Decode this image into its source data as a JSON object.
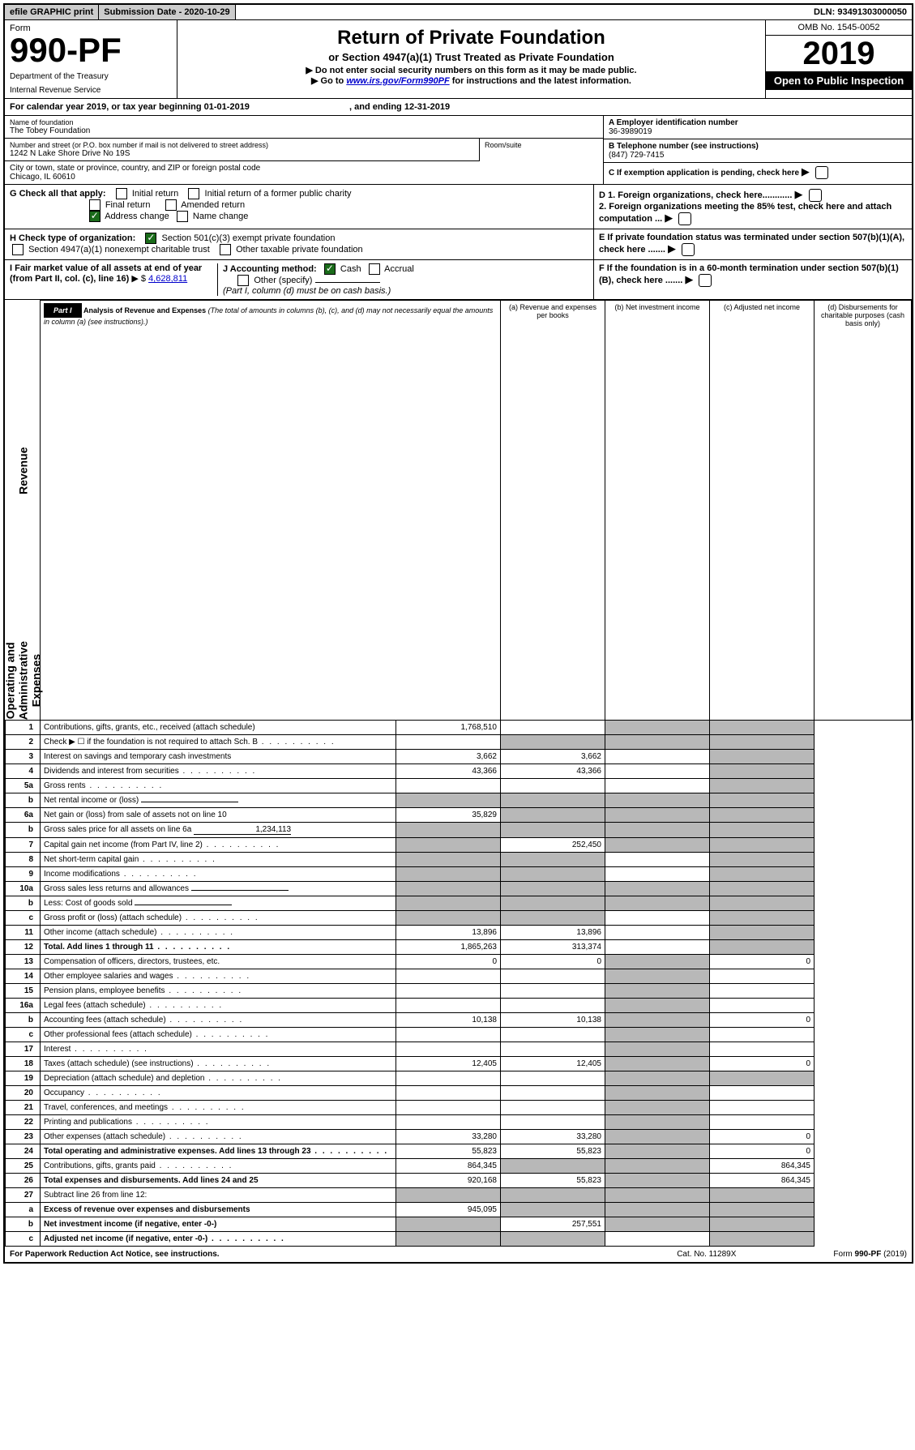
{
  "topbar": {
    "efile": "efile GRAPHIC print",
    "submission": "Submission Date - 2020-10-29",
    "dln": "DLN: 93491303000050"
  },
  "header": {
    "form_label": "Form",
    "form_no": "990-PF",
    "dept": "Department of the Treasury",
    "irs": "Internal Revenue Service",
    "title": "Return of Private Foundation",
    "subtitle": "or Section 4947(a)(1) Trust Treated as Private Foundation",
    "notice1": "▶ Do not enter social security numbers on this form as it may be made public.",
    "notice2_pre": "▶ Go to ",
    "notice2_link": "www.irs.gov/Form990PF",
    "notice2_post": " for instructions and the latest information.",
    "omb": "OMB No. 1545-0052",
    "year": "2019",
    "open": "Open to Public Inspection"
  },
  "calendar": {
    "text_pre": "For calendar year 2019, or tax year beginning ",
    "begin": "01-01-2019",
    "text_mid": " , and ending ",
    "end": "12-31-2019"
  },
  "info": {
    "name_label": "Name of foundation",
    "name": "The Tobey Foundation",
    "addr_label": "Number and street (or P.O. box number if mail is not delivered to street address)",
    "addr": "1242 N Lake Shore Drive No 19S",
    "room_label": "Room/suite",
    "city_label": "City or town, state or province, country, and ZIP or foreign postal code",
    "city": "Chicago, IL  60610",
    "ein_label": "A Employer identification number",
    "ein": "36-3989019",
    "phone_label": "B Telephone number (see instructions)",
    "phone": "(847) 729-7415",
    "c_label": "C If exemption application is pending, check here"
  },
  "checks": {
    "g_label": "G Check all that apply:",
    "initial": "Initial return",
    "initial_former": "Initial return of a former public charity",
    "final": "Final return",
    "amended": "Amended return",
    "address": "Address change",
    "name_change": "Name change",
    "h_label": "H Check type of organization:",
    "h_501c3": "Section 501(c)(3) exempt private foundation",
    "h_4947": "Section 4947(a)(1) nonexempt charitable trust",
    "h_other": "Other taxable private foundation",
    "i_label": "I Fair market value of all assets at end of year (from Part II, col. (c), line 16)",
    "i_value": "4,628,811",
    "j_label": "J Accounting method:",
    "j_cash": "Cash",
    "j_accrual": "Accrual",
    "j_other": "Other (specify)",
    "j_note": "(Part I, column (d) must be on cash basis.)",
    "d1": "D 1. Foreign organizations, check here............",
    "d2": "2. Foreign organizations meeting the 85% test, check here and attach computation ...",
    "e": "E If private foundation status was terminated under section 507(b)(1)(A), check here .......",
    "f": "F If the foundation is in a 60-month termination under section 507(b)(1)(B), check here ......."
  },
  "part1": {
    "label": "Part I",
    "title": "Analysis of Revenue and Expenses",
    "note": "(The total of amounts in columns (b), (c), and (d) may not necessarily equal the amounts in column (a) (see instructions).)",
    "col_a": "(a) Revenue and expenses per books",
    "col_b": "(b) Net investment income",
    "col_c": "(c) Adjusted net income",
    "col_d": "(d) Disbursements for charitable purposes (cash basis only)"
  },
  "sections": {
    "revenue": "Revenue",
    "expenses": "Operating and Administrative Expenses"
  },
  "rows": [
    {
      "n": "1",
      "desc": "Contributions, gifts, grants, etc., received (attach schedule)",
      "a": "1,768,510",
      "b": "",
      "c": "g",
      "d": "g"
    },
    {
      "n": "2",
      "desc": "Check ▶ ☐ if the foundation is not required to attach Sch. B",
      "a": "",
      "b": "g",
      "c": "g",
      "d": "g",
      "dots": true
    },
    {
      "n": "3",
      "desc": "Interest on savings and temporary cash investments",
      "a": "3,662",
      "b": "3,662",
      "c": "",
      "d": "g"
    },
    {
      "n": "4",
      "desc": "Dividends and interest from securities",
      "a": "43,366",
      "b": "43,366",
      "c": "",
      "d": "g",
      "dots": true
    },
    {
      "n": "5a",
      "desc": "Gross rents",
      "a": "",
      "b": "",
      "c": "",
      "d": "g",
      "dots": true
    },
    {
      "n": "b",
      "desc": "Net rental income or (loss)",
      "a": "g",
      "b": "g",
      "c": "g",
      "d": "g",
      "inline": true
    },
    {
      "n": "6a",
      "desc": "Net gain or (loss) from sale of assets not on line 10",
      "a": "35,829",
      "b": "g",
      "c": "g",
      "d": "g"
    },
    {
      "n": "b",
      "desc": "Gross sales price for all assets on line 6a",
      "a": "g",
      "b": "g",
      "c": "g",
      "d": "g",
      "inline": true,
      "inlineval": "1,234,113"
    },
    {
      "n": "7",
      "desc": "Capital gain net income (from Part IV, line 2)",
      "a": "g",
      "b": "252,450",
      "c": "g",
      "d": "g",
      "dots": true
    },
    {
      "n": "8",
      "desc": "Net short-term capital gain",
      "a": "g",
      "b": "g",
      "c": "",
      "d": "g",
      "dots": true
    },
    {
      "n": "9",
      "desc": "Income modifications",
      "a": "g",
      "b": "g",
      "c": "",
      "d": "g",
      "dots": true
    },
    {
      "n": "10a",
      "desc": "Gross sales less returns and allowances",
      "a": "g",
      "b": "g",
      "c": "g",
      "d": "g",
      "inline": true
    },
    {
      "n": "b",
      "desc": "Less: Cost of goods sold",
      "a": "g",
      "b": "g",
      "c": "g",
      "d": "g",
      "inline": true,
      "dots": true
    },
    {
      "n": "c",
      "desc": "Gross profit or (loss) (attach schedule)",
      "a": "g",
      "b": "g",
      "c": "",
      "d": "g",
      "dots": true
    },
    {
      "n": "11",
      "desc": "Other income (attach schedule)",
      "a": "13,896",
      "b": "13,896",
      "c": "",
      "d": "g",
      "dots": true
    },
    {
      "n": "12",
      "desc": "Total. Add lines 1 through 11",
      "a": "1,865,263",
      "b": "313,374",
      "c": "",
      "d": "g",
      "bold": true,
      "dots": true
    },
    {
      "n": "13",
      "desc": "Compensation of officers, directors, trustees, etc.",
      "a": "0",
      "b": "0",
      "c": "g",
      "d": "0"
    },
    {
      "n": "14",
      "desc": "Other employee salaries and wages",
      "a": "",
      "b": "",
      "c": "g",
      "d": "",
      "dots": true
    },
    {
      "n": "15",
      "desc": "Pension plans, employee benefits",
      "a": "",
      "b": "",
      "c": "g",
      "d": "",
      "dots": true
    },
    {
      "n": "16a",
      "desc": "Legal fees (attach schedule)",
      "a": "",
      "b": "",
      "c": "g",
      "d": "",
      "dots": true
    },
    {
      "n": "b",
      "desc": "Accounting fees (attach schedule)",
      "a": "10,138",
      "b": "10,138",
      "c": "g",
      "d": "0",
      "dots": true
    },
    {
      "n": "c",
      "desc": "Other professional fees (attach schedule)",
      "a": "",
      "b": "",
      "c": "g",
      "d": "",
      "dots": true
    },
    {
      "n": "17",
      "desc": "Interest",
      "a": "",
      "b": "",
      "c": "g",
      "d": "",
      "dots": true
    },
    {
      "n": "18",
      "desc": "Taxes (attach schedule) (see instructions)",
      "a": "12,405",
      "b": "12,405",
      "c": "g",
      "d": "0",
      "dots": true
    },
    {
      "n": "19",
      "desc": "Depreciation (attach schedule) and depletion",
      "a": "",
      "b": "",
      "c": "g",
      "d": "g",
      "dots": true
    },
    {
      "n": "20",
      "desc": "Occupancy",
      "a": "",
      "b": "",
      "c": "g",
      "d": "",
      "dots": true
    },
    {
      "n": "21",
      "desc": "Travel, conferences, and meetings",
      "a": "",
      "b": "",
      "c": "g",
      "d": "",
      "dots": true
    },
    {
      "n": "22",
      "desc": "Printing and publications",
      "a": "",
      "b": "",
      "c": "g",
      "d": "",
      "dots": true
    },
    {
      "n": "23",
      "desc": "Other expenses (attach schedule)",
      "a": "33,280",
      "b": "33,280",
      "c": "g",
      "d": "0",
      "dots": true
    },
    {
      "n": "24",
      "desc": "Total operating and administrative expenses. Add lines 13 through 23",
      "a": "55,823",
      "b": "55,823",
      "c": "g",
      "d": "0",
      "bold": true,
      "dots": true
    },
    {
      "n": "25",
      "desc": "Contributions, gifts, grants paid",
      "a": "864,345",
      "b": "g",
      "c": "g",
      "d": "864,345",
      "dots": true
    },
    {
      "n": "26",
      "desc": "Total expenses and disbursements. Add lines 24 and 25",
      "a": "920,168",
      "b": "55,823",
      "c": "g",
      "d": "864,345",
      "bold": true
    },
    {
      "n": "27",
      "desc": "Subtract line 26 from line 12:",
      "a": "g",
      "b": "g",
      "c": "g",
      "d": "g"
    },
    {
      "n": "a",
      "desc": "Excess of revenue over expenses and disbursements",
      "a": "945,095",
      "b": "g",
      "c": "g",
      "d": "g",
      "bold": true
    },
    {
      "n": "b",
      "desc": "Net investment income (if negative, enter -0-)",
      "a": "g",
      "b": "257,551",
      "c": "g",
      "d": "g",
      "bold": true
    },
    {
      "n": "c",
      "desc": "Adjusted net income (if negative, enter -0-)",
      "a": "g",
      "b": "g",
      "c": "",
      "d": "g",
      "bold": true,
      "dots": true
    }
  ],
  "footer": {
    "left": "For Paperwork Reduction Act Notice, see instructions.",
    "mid": "Cat. No. 11289X",
    "right": "Form 990-PF (2019)"
  }
}
